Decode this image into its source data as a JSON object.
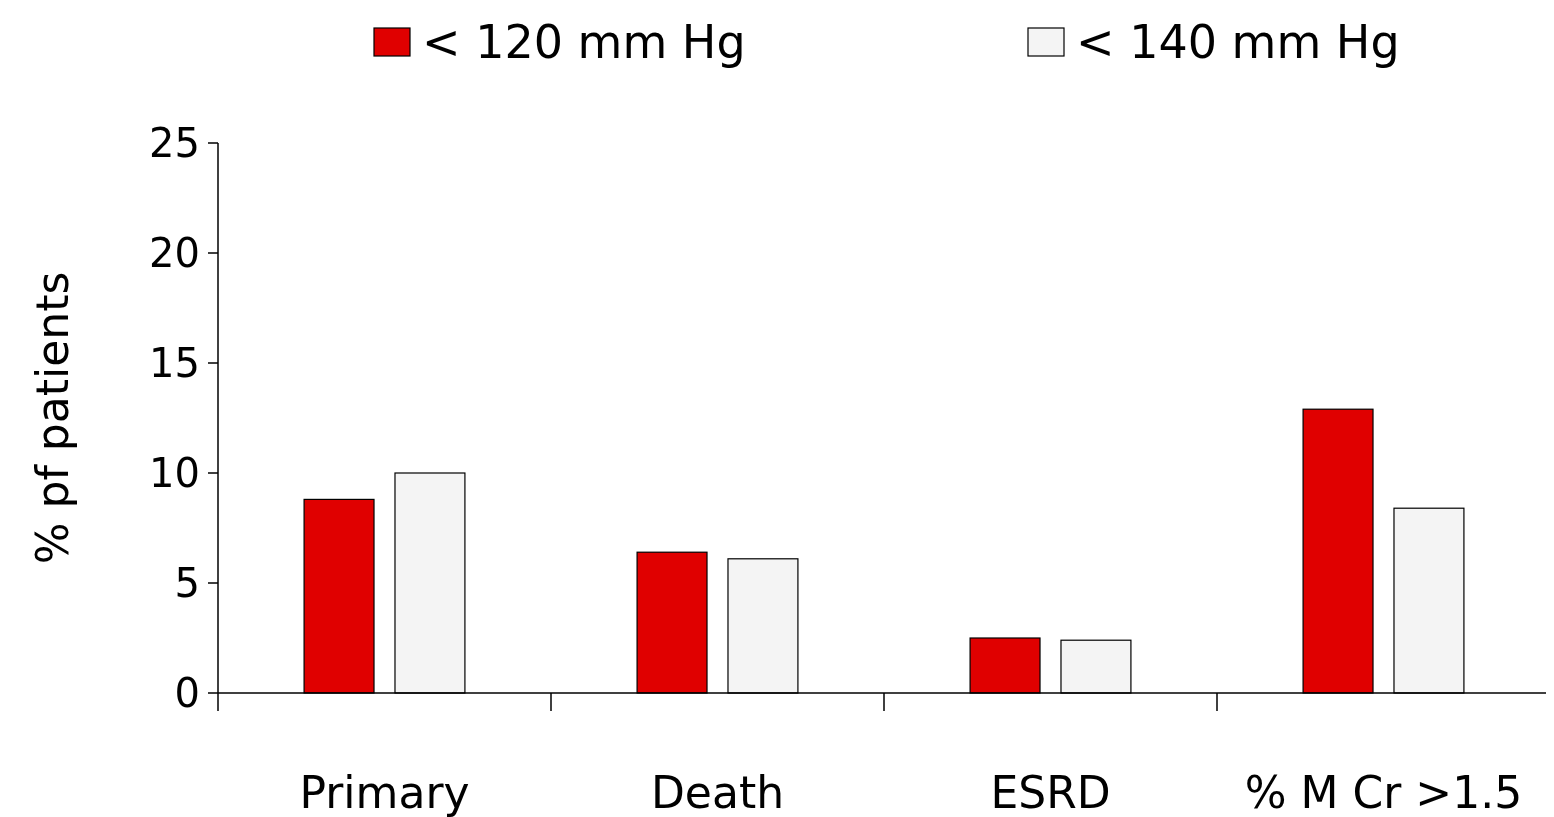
{
  "chart_data": {
    "type": "bar",
    "ylabel": "% pf patients",
    "categories": [
      "Primary",
      "Death",
      "ESRD",
      "% M Cr >1.5"
    ],
    "series": [
      {
        "name": "< 120 mm Hg",
        "color": "#e00000",
        "values": [
          8.8,
          6.4,
          2.5,
          12.9
        ]
      },
      {
        "name": "< 140 mm Hg",
        "color": "#f4f4f4",
        "values": [
          10.0,
          6.1,
          2.4,
          8.4
        ]
      }
    ],
    "ylim": [
      0,
      25
    ],
    "yticks": [
      0,
      5,
      10,
      15,
      20,
      25
    ],
    "grid": false,
    "legend": "top"
  }
}
